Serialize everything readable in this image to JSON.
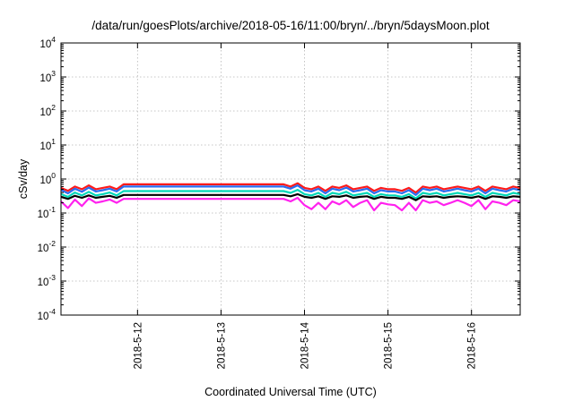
{
  "chart_data": {
    "type": "line",
    "title": "/data/run/goesPlots/archive/2018-05-16/11:00/bryn/../bryn/5daysMoon.plot",
    "xlabel": "Coordinated Universal Time (UTC)",
    "ylabel": "cSv/day",
    "xlim": [
      "2018-05-11T02:00",
      "2018-05-16T14:00"
    ],
    "x_ticks": [
      "2018-5-12",
      "2018-5-13",
      "2018-5-14",
      "2018-5-15",
      "2018-5-16"
    ],
    "y_scale": "log",
    "ylim": [
      0.0001,
      10000
    ],
    "y_ticks": [
      {
        "base": "10",
        "exp": "4",
        "value": 10000
      },
      {
        "base": "10",
        "exp": "3",
        "value": 1000
      },
      {
        "base": "10",
        "exp": "2",
        "value": 100
      },
      {
        "base": "10",
        "exp": "1",
        "value": 10
      },
      {
        "base": "10",
        "exp": "0",
        "value": 1
      },
      {
        "base": "10",
        "exp": "-1",
        "value": 0.1
      },
      {
        "base": "10",
        "exp": "-2",
        "value": 0.01
      },
      {
        "base": "10",
        "exp": "-3",
        "value": 0.001
      },
      {
        "base": "10",
        "exp": "-4",
        "value": 0.0001
      }
    ],
    "grid": true,
    "x": [
      "2018-05-11T02:00",
      "2018-05-11T04:00",
      "2018-05-11T06:00",
      "2018-05-11T08:00",
      "2018-05-11T10:00",
      "2018-05-11T12:00",
      "2018-05-11T14:00",
      "2018-05-11T16:00",
      "2018-05-11T18:00",
      "2018-05-11T20:00",
      "2018-05-13T18:00",
      "2018-05-13T20:00",
      "2018-05-13T22:00",
      "2018-05-14T00:00",
      "2018-05-14T02:00",
      "2018-05-14T04:00",
      "2018-05-14T06:00",
      "2018-05-14T08:00",
      "2018-05-14T10:00",
      "2018-05-14T12:00",
      "2018-05-14T14:00",
      "2018-05-14T16:00",
      "2018-05-14T18:00",
      "2018-05-14T20:00",
      "2018-05-14T22:00",
      "2018-05-15T00:00",
      "2018-05-15T02:00",
      "2018-05-15T04:00",
      "2018-05-15T06:00",
      "2018-05-15T08:00",
      "2018-05-15T10:00",
      "2018-05-15T12:00",
      "2018-05-15T14:00",
      "2018-05-15T16:00",
      "2018-05-15T18:00",
      "2018-05-15T20:00",
      "2018-05-15T22:00",
      "2018-05-16T00:00",
      "2018-05-16T02:00",
      "2018-05-16T04:00",
      "2018-05-16T06:00",
      "2018-05-16T08:00",
      "2018-05-16T10:00",
      "2018-05-16T12:00",
      "2018-05-16T14:00"
    ],
    "series": [
      {
        "color": "#ff1a1a",
        "values": [
          0.55,
          0.45,
          0.6,
          0.5,
          0.65,
          0.5,
          0.55,
          0.6,
          0.5,
          0.7,
          0.7,
          0.6,
          0.75,
          0.55,
          0.5,
          0.6,
          0.45,
          0.6,
          0.55,
          0.65,
          0.5,
          0.55,
          0.6,
          0.45,
          0.55,
          0.5,
          0.5,
          0.45,
          0.55,
          0.4,
          0.6,
          0.55,
          0.6,
          0.5,
          0.55,
          0.6,
          0.55,
          0.5,
          0.6,
          0.45,
          0.6,
          0.55,
          0.5,
          0.6,
          0.55
        ]
      },
      {
        "color": "#2a6cf0",
        "values": [
          0.48,
          0.38,
          0.52,
          0.42,
          0.56,
          0.43,
          0.47,
          0.52,
          0.43,
          0.6,
          0.6,
          0.52,
          0.65,
          0.47,
          0.43,
          0.52,
          0.38,
          0.52,
          0.47,
          0.56,
          0.43,
          0.47,
          0.52,
          0.38,
          0.47,
          0.43,
          0.43,
          0.38,
          0.47,
          0.34,
          0.52,
          0.47,
          0.52,
          0.43,
          0.47,
          0.52,
          0.47,
          0.43,
          0.52,
          0.38,
          0.52,
          0.47,
          0.43,
          0.52,
          0.47
        ]
      },
      {
        "color": "#00d8b8",
        "values": [
          0.36,
          0.3,
          0.4,
          0.33,
          0.42,
          0.33,
          0.36,
          0.4,
          0.33,
          0.44,
          0.44,
          0.39,
          0.48,
          0.36,
          0.33,
          0.39,
          0.3,
          0.39,
          0.36,
          0.42,
          0.33,
          0.36,
          0.39,
          0.3,
          0.36,
          0.33,
          0.33,
          0.3,
          0.36,
          0.27,
          0.39,
          0.36,
          0.39,
          0.33,
          0.36,
          0.39,
          0.36,
          0.33,
          0.39,
          0.3,
          0.39,
          0.36,
          0.33,
          0.39,
          0.36
        ]
      },
      {
        "color": "#000000",
        "values": [
          0.3,
          0.26,
          0.32,
          0.28,
          0.33,
          0.28,
          0.3,
          0.32,
          0.28,
          0.34,
          0.34,
          0.31,
          0.36,
          0.3,
          0.28,
          0.31,
          0.26,
          0.31,
          0.3,
          0.33,
          0.28,
          0.3,
          0.31,
          0.26,
          0.3,
          0.28,
          0.28,
          0.26,
          0.3,
          0.24,
          0.31,
          0.3,
          0.31,
          0.28,
          0.3,
          0.31,
          0.3,
          0.28,
          0.31,
          0.26,
          0.31,
          0.3,
          0.28,
          0.31,
          0.3
        ]
      },
      {
        "color": "#ff22ee",
        "values": [
          0.22,
          0.14,
          0.25,
          0.16,
          0.27,
          0.2,
          0.22,
          0.25,
          0.2,
          0.26,
          0.26,
          0.22,
          0.28,
          0.17,
          0.13,
          0.2,
          0.13,
          0.22,
          0.18,
          0.24,
          0.15,
          0.2,
          0.24,
          0.12,
          0.2,
          0.18,
          0.17,
          0.12,
          0.2,
          0.12,
          0.24,
          0.2,
          0.22,
          0.17,
          0.2,
          0.24,
          0.2,
          0.16,
          0.24,
          0.13,
          0.22,
          0.2,
          0.17,
          0.24,
          0.22
        ]
      }
    ]
  }
}
